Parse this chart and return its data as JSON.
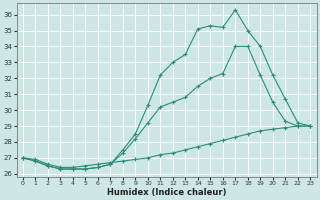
{
  "xlabel": "Humidex (Indice chaleur)",
  "background_color": "#cde8e4",
  "grid_color": "#ffffff",
  "line_color": "#2e8b7a",
  "xlim": [
    -0.5,
    23.5
  ],
  "ylim": [
    25.8,
    36.7
  ],
  "yticks": [
    26,
    27,
    28,
    29,
    30,
    31,
    32,
    33,
    34,
    35,
    36
  ],
  "xticks": [
    0,
    1,
    2,
    3,
    4,
    5,
    6,
    7,
    8,
    9,
    10,
    11,
    12,
    13,
    14,
    15,
    16,
    17,
    18,
    19,
    20,
    21,
    22,
    23
  ],
  "line1_x": [
    0,
    1,
    2,
    3,
    4,
    5,
    6,
    7,
    8,
    9,
    10,
    11,
    12,
    13,
    14,
    15,
    16,
    17,
    18,
    19,
    20,
    21,
    22,
    23
  ],
  "line1_y": [
    27.0,
    26.9,
    26.6,
    26.4,
    26.4,
    26.5,
    26.6,
    26.7,
    26.8,
    26.9,
    27.0,
    27.2,
    27.3,
    27.5,
    27.7,
    27.9,
    28.1,
    28.3,
    28.5,
    28.7,
    28.8,
    28.9,
    29.0,
    29.0
  ],
  "line2_x": [
    0,
    1,
    2,
    3,
    4,
    5,
    6,
    7,
    8,
    9,
    10,
    11,
    12,
    13,
    14,
    15,
    16,
    17,
    18,
    19,
    20,
    21,
    22,
    23
  ],
  "line2_y": [
    27.0,
    26.8,
    26.5,
    26.3,
    26.3,
    26.3,
    26.4,
    26.6,
    27.3,
    28.2,
    29.2,
    30.2,
    30.5,
    30.8,
    31.5,
    32.0,
    32.3,
    34.0,
    34.0,
    32.2,
    30.5,
    29.3,
    29.0,
    29.0
  ],
  "line3_x": [
    0,
    1,
    2,
    3,
    4,
    5,
    6,
    7,
    8,
    9,
    10,
    11,
    12,
    13,
    14,
    15,
    16,
    17,
    18,
    19,
    20,
    21,
    22,
    23
  ],
  "line3_y": [
    27.0,
    26.8,
    26.5,
    26.3,
    26.3,
    26.3,
    26.4,
    26.6,
    27.5,
    28.5,
    30.3,
    32.2,
    33.0,
    33.5,
    35.1,
    35.3,
    35.2,
    36.3,
    35.0,
    34.0,
    32.2,
    30.7,
    29.2,
    29.0
  ]
}
